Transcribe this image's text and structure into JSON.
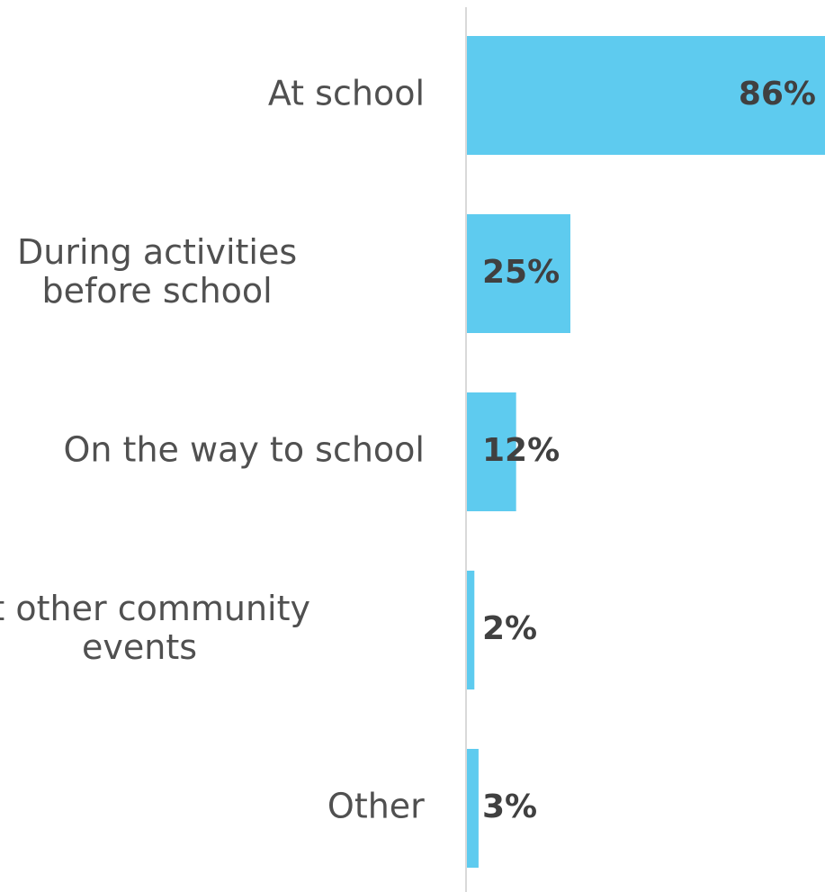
{
  "chart_data": {
    "type": "bar",
    "orientation": "horizontal",
    "categories": [
      [
        "At school"
      ],
      [
        "During activities",
        "before school"
      ],
      [
        "On the way to school"
      ],
      [
        "At other community",
        "events"
      ],
      [
        "Other"
      ]
    ],
    "values": [
      86,
      25,
      12,
      2,
      3
    ],
    "value_labels": [
      "86%",
      "25%",
      "12%",
      "2%",
      "3%"
    ],
    "bar_color": "#5ecbef",
    "axis_color": "#d9d9d9",
    "xlim": [
      0,
      86
    ],
    "grid": false,
    "legend": false
  }
}
